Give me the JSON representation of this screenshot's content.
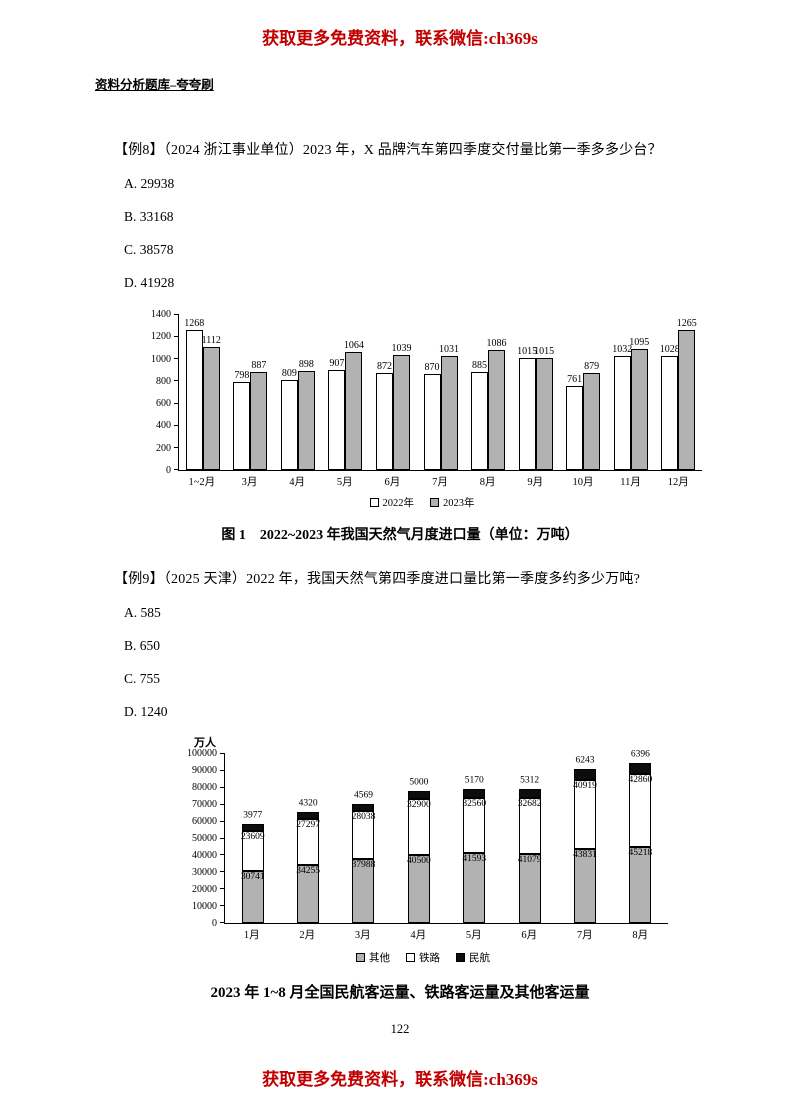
{
  "colors": {
    "accent_red": "#c00000",
    "fill_white": "#ffffff",
    "fill_gray": "#b2b2b2",
    "fill_black": "#0d0d0d"
  },
  "page": {
    "top_banner": "获取更多免费资料，联系微信:ch369s",
    "header": "资料分析题库–夸夸刷",
    "page_number": "122",
    "bottom_banner": "获取更多免费资料，联系微信:ch369s"
  },
  "q8": {
    "stem": "【例8】（2024 浙江事业单位）2023 年，X 品牌汽车第四季度交付量比第一季多多少台？",
    "options": [
      "A. 29938",
      "B. 33168",
      "C. 38578",
      "D. 41928"
    ],
    "caption": "图 1　2022~2023 年我国天然气月度进口量（单位：万吨）"
  },
  "q9": {
    "stem": "【例9】（2025 天津）2022 年，我国天然气第四季度进口量比第一季度多约多少万吨?",
    "options": [
      "A. 585",
      "B. 650",
      "C. 755",
      "D. 1240"
    ],
    "caption": "2023 年 1~8 月全国民航客运量、铁路客运量及其他客运量"
  },
  "chart_data": [
    {
      "type": "bar",
      "title": "图 1 2022~2023 年我国天然气月度进口量（单位：万吨）",
      "categories": [
        "1~2月",
        "3月",
        "4月",
        "5月",
        "6月",
        "7月",
        "8月",
        "9月",
        "10月",
        "11月",
        "12月"
      ],
      "series": [
        {
          "name": "2022年",
          "fill": "white",
          "values": [
            1268,
            798,
            809,
            907,
            872,
            870,
            885,
            1015,
            761,
            1032,
            1028
          ]
        },
        {
          "name": "2023年",
          "fill": "gray",
          "values": [
            1112,
            887,
            898,
            1064,
            1039,
            1031,
            1086,
            1015,
            879,
            1095,
            1265
          ]
        }
      ],
      "ylim": [
        0,
        1400
      ],
      "yticks": [
        0,
        200,
        400,
        600,
        800,
        1000,
        1200,
        1400
      ],
      "grid": false,
      "legend_position": "bottom"
    },
    {
      "type": "stacked-bar",
      "title": "2023 年 1~8 月全国民航客运量、铁路客运量及其他客运量",
      "ylabel": "万人",
      "categories": [
        "1月",
        "2月",
        "3月",
        "4月",
        "5月",
        "6月",
        "7月",
        "8月"
      ],
      "series": [
        {
          "name": "其他",
          "fill": "gray",
          "values": [
            30741,
            34255,
            37988,
            40500,
            41593,
            41079,
            43831,
            45218
          ]
        },
        {
          "name": "铁路",
          "fill": "white",
          "values": [
            23609,
            27297,
            28038,
            32900,
            32560,
            32682,
            40919,
            42860
          ]
        },
        {
          "name": "民航",
          "fill": "black",
          "values": [
            3977,
            4320,
            4569,
            5000,
            5170,
            5312,
            6243,
            6396
          ]
        }
      ],
      "ylim": [
        0,
        100000
      ],
      "yticks": [
        0,
        10000,
        20000,
        30000,
        40000,
        50000,
        60000,
        70000,
        80000,
        90000,
        100000
      ],
      "grid": false,
      "legend_position": "bottom"
    }
  ]
}
